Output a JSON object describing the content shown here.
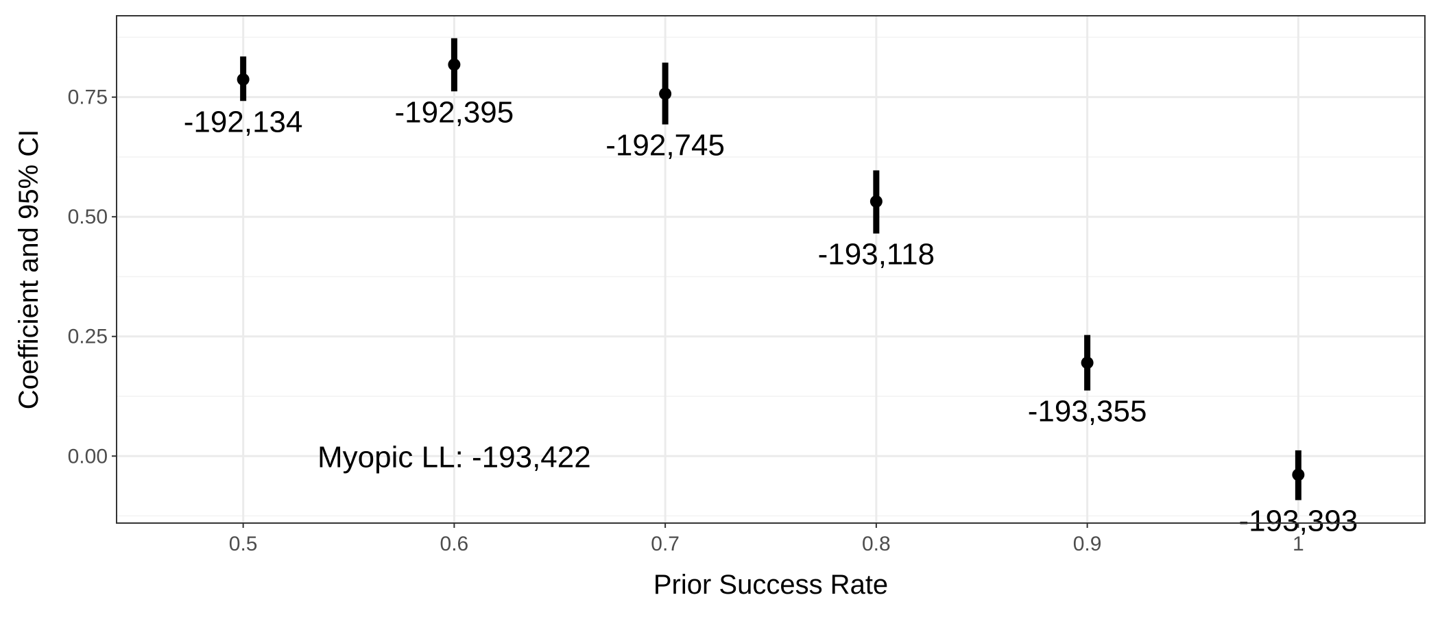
{
  "chart_data": {
    "type": "scatter",
    "title": "",
    "xlabel": "Prior Success Rate",
    "ylabel": "Coefficient and 95% CI",
    "xlim": [
      0.44,
      1.06
    ],
    "ylim": [
      -0.14,
      0.92
    ],
    "x_ticks": [
      0.5,
      0.6,
      0.7,
      0.8,
      0.9,
      1.0
    ],
    "x_tick_labels": [
      "0.5",
      "0.6",
      "0.7",
      "0.8",
      "0.9",
      "1"
    ],
    "y_ticks": [
      0.0,
      0.25,
      0.5,
      0.75
    ],
    "y_tick_labels": [
      "0.00",
      "0.25",
      "0.50",
      "0.75"
    ],
    "grid": true,
    "points": [
      {
        "x": 0.5,
        "y": 0.787,
        "lower": 0.742,
        "upper": 0.835,
        "label": "-192,134"
      },
      {
        "x": 0.6,
        "y": 0.818,
        "lower": 0.762,
        "upper": 0.873,
        "label": "-192,395"
      },
      {
        "x": 0.7,
        "y": 0.757,
        "lower": 0.693,
        "upper": 0.822,
        "label": "-192,745"
      },
      {
        "x": 0.8,
        "y": 0.532,
        "lower": 0.465,
        "upper": 0.597,
        "label": "-193,118"
      },
      {
        "x": 0.9,
        "y": 0.195,
        "lower": 0.137,
        "upper": 0.253,
        "label": "-193,355"
      },
      {
        "x": 1.0,
        "y": -0.039,
        "lower": -0.092,
        "upper": 0.012,
        "label": "-193,393"
      }
    ],
    "annotation": {
      "text": "Myopic LL: -193,422",
      "x": 0.6,
      "y": 0.0
    }
  }
}
